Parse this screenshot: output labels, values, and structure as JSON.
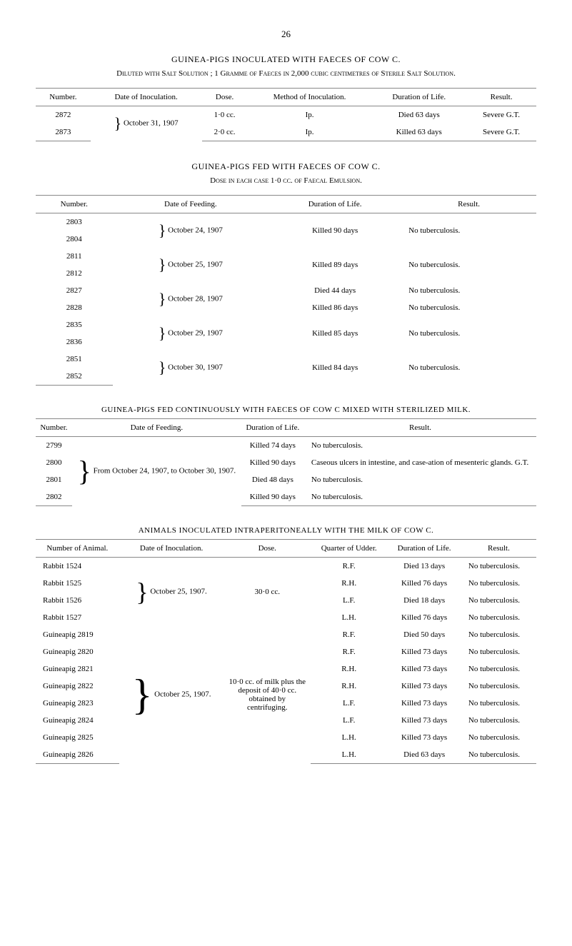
{
  "page_number": "26",
  "section1": {
    "title": "GUINEA-PIGS INOCULATED WITH FAECES OF COW C.",
    "subtitle": "Diluted with Salt Solution ; 1 Gramme of Faeces in 2,000 cubic centimetres of Sterile Salt Solution.",
    "headers": [
      "Number.",
      "Date of Inoculation.",
      "Dose.",
      "Method of Inoculation.",
      "Duration of Life.",
      "Result."
    ],
    "rows": [
      {
        "num": "2872",
        "bracket": "}",
        "date": "October 31, 1907",
        "dose": "1·0 cc.",
        "method": "Ip.",
        "dur": "Died 63 days",
        "res": "Severe G.T."
      },
      {
        "num": "2873",
        "dose": "2·0 cc.",
        "method": "Ip.",
        "dur": "Killed 63 days",
        "res": "Severe G.T."
      }
    ]
  },
  "section2": {
    "title": "GUINEA-PIGS FED WITH FAECES OF COW C.",
    "subtitle": "Dose in each case 1·0 cc. of Faecal Emulsion.",
    "headers": [
      "Number.",
      "Date of Feeding.",
      "Duration of Life.",
      "Result."
    ],
    "groups": [
      {
        "nums": [
          "2803",
          "2804"
        ],
        "date": "October 24, 1907",
        "dur": "Killed 90 days",
        "res": "No tuberculosis."
      },
      {
        "nums": [
          "2811",
          "2812"
        ],
        "date": "October 25, 1907",
        "dur": "Killed 89 days",
        "res": "No tuberculosis."
      },
      {
        "nums": [
          "2827",
          "2828"
        ],
        "date": "October 28, 1907",
        "durs": [
          "Died 44 days",
          "Killed 86 days"
        ],
        "ress": [
          "No tuberculosis.",
          "No tuberculosis."
        ]
      },
      {
        "nums": [
          "2835",
          "2836"
        ],
        "date": "October 29, 1907",
        "dur": "Killed 85 days",
        "res": "No tuberculosis."
      },
      {
        "nums": [
          "2851",
          "2852"
        ],
        "date": "October 30, 1907",
        "dur": "Killed 84 days",
        "res": "No tuberculosis."
      }
    ]
  },
  "section3": {
    "title": "GUINEA-PIGS FED CONTINUOUSLY WITH FAECES OF COW C MIXED WITH STERILIZED MILK.",
    "headers": [
      "Number.",
      "Date of Feeding.",
      "Duration of Life.",
      "Result."
    ],
    "date_text": "From October 24, 1907, to October 30, 1907.",
    "rows": [
      {
        "num": "2799",
        "dur": "Killed 74 days",
        "res": "No tuberculosis."
      },
      {
        "num": "2800",
        "dur": "Killed 90 days",
        "res": "Caseous ulcers in intestine, and case-ation of mesenteric glands.   G.T."
      },
      {
        "num": "2801",
        "dur": "Died 48 days",
        "res": "No tuberculosis."
      },
      {
        "num": "2802",
        "dur": "Killed 90 days",
        "res": "No tuberculosis."
      }
    ]
  },
  "section4": {
    "title": "ANIMALS INOCULATED INTRAPERITONEALLY WITH THE MILK OF COW C.",
    "headers": [
      "Number of Animal.",
      "Date of Inoculation.",
      "Dose.",
      "Quarter of Udder.",
      "Duration of Life.",
      "Result."
    ],
    "group1": {
      "date": "October 25, 1907.",
      "dose": "30·0 cc.",
      "rows": [
        {
          "num": "Rabbit 1524",
          "q": "R.F.",
          "dur": "Died 13 days",
          "res": "No tuberculosis."
        },
        {
          "num": "Rabbit 1525",
          "q": "R.H.",
          "dur": "Killed 76 days",
          "res": "No tuberculosis."
        },
        {
          "num": "Rabbit 1526",
          "q": "L.F.",
          "dur": "Died 18 days",
          "res": "No tuberculosis."
        },
        {
          "num": "Rabbit 1527",
          "q": "L.H.",
          "dur": "Killed 76 days",
          "res": "No tuberculosis."
        }
      ]
    },
    "group2": {
      "date": "October 25, 1907.",
      "dose": "10·0 cc. of milk plus the deposit of 40·0 cc. obtained by centrifuging.",
      "rows": [
        {
          "num": "Guineapig 2819",
          "q": "R.F.",
          "dur": "Died 50 days",
          "res": "No tuberculosis."
        },
        {
          "num": "Guineapig 2820",
          "q": "R.F.",
          "dur": "Killed 73 days",
          "res": "No tuberculosis."
        },
        {
          "num": "Guineapig 2821",
          "q": "R.H.",
          "dur": "Killed 73 days",
          "res": "No tuberculosis."
        },
        {
          "num": "Guineapig 2822",
          "q": "R.H.",
          "dur": "Killed 73 days",
          "res": "No tuberculosis."
        },
        {
          "num": "Guineapig 2823",
          "q": "L.F.",
          "dur": "Killed 73 days",
          "res": "No tuberculosis."
        },
        {
          "num": "Guineapig 2824",
          "q": "L.F.",
          "dur": "Killed 73 days",
          "res": "No tuberculosis."
        },
        {
          "num": "Guineapig 2825",
          "q": "L.H.",
          "dur": "Killed 73 days",
          "res": "No tuberculosis."
        },
        {
          "num": "Guineapig 2826",
          "q": "L.H.",
          "dur": "Died 63 days",
          "res": "No tuberculosis."
        }
      ]
    }
  }
}
